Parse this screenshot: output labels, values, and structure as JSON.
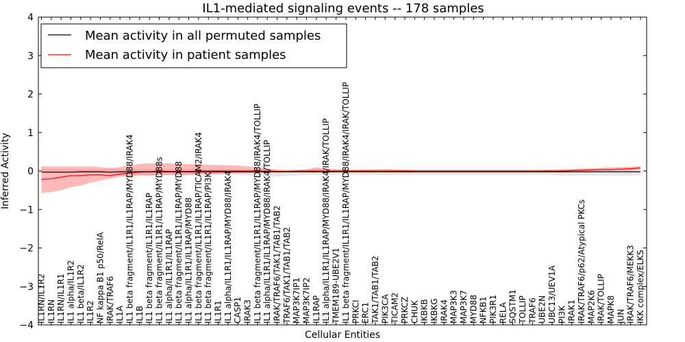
{
  "chart_data": {
    "type": "line",
    "title": "IL1-mediated signaling events -- 178 samples",
    "xlabel": "Cellular Entities",
    "ylabel": "Inferred Activity",
    "ylim": [
      -4,
      4
    ],
    "yticks": [
      -4,
      -3,
      -2,
      -1,
      0,
      1,
      2,
      3,
      4
    ],
    "ytick_labels": [
      "−4",
      "−3",
      "−2",
      "−1",
      "0",
      "1",
      "2",
      "3",
      "4"
    ],
    "legend_position": "top-left",
    "grid": false,
    "categories": [
      "IL1RN/IL1R2",
      "IL1RN",
      "IL1RN/IL1R1",
      "IL1 alpha/IL1R2",
      "IL1 beta/IL1R2",
      "IL1R2",
      "NF kappa B1 p50/RelA",
      "IRAK/TRAF6",
      "IL1A",
      "IL1 beta fragment/IL1R1/IL1RAP/MYD88/IRAK4",
      "IL1B",
      "IL1 beta fragment/IL1R1/IL1RAP",
      "IL1 beta fragment/IL1R1/IL1RAP/MYD88s",
      "IL1 alpha/IL1R1/IL1RAP",
      "IL1 beta fragment/IL1R1/IL1RAP/MYD88",
      "IL1 alpha/IL1R1/IL1RAP/MYD88",
      "IL1 beta fragment/IL1R1/IL1RAP/TICAM2/IRAK4",
      "IL1 beta fragment/IL1R1/IL1RAP/PI3K",
      "IL1R1",
      "IL1 alpha/IL1R1/IL1RAP/MYD88/IRAK4",
      "CASP1",
      "IRAK3",
      "IL1 beta fragment/IL1R1/IL1RAP/MYD88/IRAK4/TOLLIP",
      "IL1 alpha/IL1R1/IL1RAP/MYD88/IRAK4/TOLLIP",
      "IRAK/TRAF6/TAK1/TAB1/TAB2",
      "TRAF6/TAK1/TAB1/TAB2",
      "MAP3K7IP1",
      "MAP3K7IP2",
      "IL1RAP",
      "IL1 alpha/IL1R1/IL1RAP/MYD88/IRAK4/IRAK/TOLLIP",
      "TMEM189-UBE2V1",
      "IL1 beta fragment/IL1R1/IL1RAP/MYD88/IRAK4/IRAK/TOLLIP",
      "PRKCI",
      "ERC1",
      "TAK1/TAB1/TAB2",
      "PIK3CA",
      "TICAM2",
      "PRKCZ",
      "CHUK",
      "IKBKB",
      "IKBKG",
      "IRAK4",
      "MAP3K3",
      "MAP3K7",
      "MYD88",
      "NFKB1",
      "PIK3R1",
      "RELA",
      "SQSTM1",
      "TOLLIP",
      "TRAF6",
      "UBE2N",
      "UBC13/UEV1A",
      "PI3K",
      "IRAK1",
      "IRAK/TRAF6/p62/Atypical PKCs",
      "MAP2K6",
      "IRAK/TOLLIP",
      "MAPK8",
      "JUN",
      "IRAK/TRAF6/MEKK3",
      "IKK complex/ELKS"
    ],
    "series": [
      {
        "name": "Mean activity in all permuted samples",
        "color": "#000000",
        "values": [
          -0.03,
          -0.03,
          -0.03,
          -0.03,
          -0.02,
          -0.02,
          -0.02,
          -0.03,
          -0.02,
          -0.02,
          -0.02,
          -0.02,
          -0.02,
          -0.02,
          -0.02,
          -0.02,
          -0.02,
          -0.02,
          -0.02,
          -0.02,
          -0.02,
          -0.02,
          -0.02,
          -0.02,
          -0.02,
          -0.02,
          -0.02,
          -0.02,
          -0.02,
          -0.02,
          -0.02,
          -0.02,
          -0.02,
          -0.02,
          -0.02,
          -0.02,
          -0.02,
          -0.02,
          -0.02,
          -0.02,
          -0.02,
          -0.02,
          -0.02,
          -0.02,
          -0.02,
          -0.02,
          -0.02,
          -0.02,
          -0.02,
          -0.02,
          -0.02,
          -0.02,
          -0.02,
          -0.02,
          -0.02,
          -0.02,
          -0.02,
          -0.02,
          -0.02,
          -0.02,
          -0.02,
          -0.02
        ],
        "lower": [
          -0.05,
          -0.05,
          -0.05,
          -0.05,
          -0.05,
          -0.05,
          -0.06,
          -0.08,
          -0.12,
          -0.12,
          -0.1,
          -0.12,
          -0.12,
          -0.12,
          -0.12,
          -0.1,
          -0.1,
          -0.1,
          -0.1,
          -0.1,
          -0.1,
          -0.12,
          -0.12,
          -0.12,
          -0.15,
          -0.12,
          -0.12,
          -0.1,
          -0.1,
          -0.1,
          -0.1,
          -0.1,
          -0.1,
          -0.1,
          -0.1,
          -0.1,
          -0.1,
          -0.1,
          -0.1,
          -0.1,
          -0.1,
          -0.1,
          -0.1,
          -0.1,
          -0.1,
          -0.1,
          -0.1,
          -0.1,
          -0.1,
          -0.1,
          -0.1,
          -0.1,
          -0.1,
          -0.12,
          -0.12,
          -0.12,
          -0.12,
          -0.12,
          -0.12,
          -0.12,
          -0.12,
          -0.12
        ],
        "upper": [
          0.05,
          0.05,
          0.05,
          0.05,
          0.05,
          0.05,
          0.05,
          0.05,
          0.05,
          0.05,
          0.05,
          0.05,
          0.05,
          0.05,
          0.05,
          0.05,
          0.05,
          0.05,
          0.05,
          0.05,
          0.05,
          0.05,
          0.05,
          0.05,
          0.05,
          0.05,
          0.05,
          0.05,
          0.05,
          0.05,
          0.05,
          0.05,
          0.05,
          0.05,
          0.05,
          0.05,
          0.05,
          0.05,
          0.05,
          0.05,
          0.05,
          0.05,
          0.05,
          0.05,
          0.05,
          0.05,
          0.05,
          0.05,
          0.05,
          0.05,
          0.05,
          0.05,
          0.05,
          0.05,
          0.05,
          0.05,
          0.05,
          0.05,
          0.05,
          0.05,
          0.05,
          0.05
        ]
      },
      {
        "name": "Mean activity in patient samples",
        "color": "#ff0000",
        "values": [
          -0.22,
          -0.2,
          -0.16,
          -0.12,
          -0.12,
          -0.1,
          -0.1,
          -0.12,
          -0.08,
          -0.05,
          -0.03,
          -0.02,
          0.0,
          -0.01,
          -0.01,
          -0.01,
          0.0,
          0.0,
          0.0,
          0.0,
          0.0,
          0.0,
          0.0,
          0.0,
          -0.01,
          -0.01,
          0.0,
          0.0,
          0.0,
          0.0,
          0.0,
          0.0,
          0.0,
          0.0,
          0.0,
          0.0,
          0.0,
          0.0,
          0.0,
          0.0,
          0.0,
          0.0,
          0.0,
          0.0,
          0.0,
          0.0,
          0.0,
          0.0,
          0.0,
          0.0,
          0.0,
          0.0,
          0.0,
          0.0,
          0.01,
          0.02,
          0.03,
          0.04,
          0.04,
          0.05,
          0.06,
          0.08
        ],
        "lower": [
          -0.58,
          -0.55,
          -0.5,
          -0.42,
          -0.38,
          -0.3,
          -0.25,
          -0.2,
          -0.15,
          -0.14,
          -0.12,
          -0.12,
          -0.1,
          -0.1,
          -0.1,
          -0.1,
          -0.08,
          -0.08,
          -0.08,
          -0.06,
          -0.06,
          -0.05,
          -0.05,
          -0.04,
          -0.04,
          -0.03,
          -0.02,
          -0.01,
          -0.02,
          -0.03,
          -0.02,
          -0.02,
          -0.02,
          -0.02,
          -0.02,
          -0.02,
          -0.02,
          -0.01,
          -0.01,
          -0.01,
          -0.01,
          -0.01,
          -0.01,
          -0.01,
          -0.01,
          -0.01,
          -0.01,
          -0.01,
          -0.01,
          -0.01,
          -0.01,
          -0.01,
          -0.01,
          -0.01,
          -0.01,
          -0.01,
          0.0,
          0.0,
          0.0,
          0.01,
          0.02,
          0.04
        ],
        "upper": [
          0.12,
          0.12,
          0.12,
          0.12,
          0.12,
          0.12,
          0.1,
          0.08,
          0.1,
          0.15,
          0.18,
          0.2,
          0.2,
          0.2,
          0.18,
          0.18,
          0.18,
          0.16,
          0.16,
          0.15,
          0.14,
          0.12,
          0.1,
          0.06,
          0.03,
          0.02,
          0.02,
          0.04,
          0.1,
          0.06,
          0.04,
          0.03,
          0.03,
          0.04,
          0.04,
          0.05,
          0.04,
          0.03,
          0.02,
          0.02,
          0.02,
          0.02,
          0.02,
          0.02,
          0.02,
          0.02,
          0.02,
          0.02,
          0.02,
          0.02,
          0.02,
          0.02,
          0.03,
          0.04,
          0.05,
          0.06,
          0.07,
          0.08,
          0.1,
          0.1,
          0.11,
          0.13
        ]
      }
    ]
  }
}
